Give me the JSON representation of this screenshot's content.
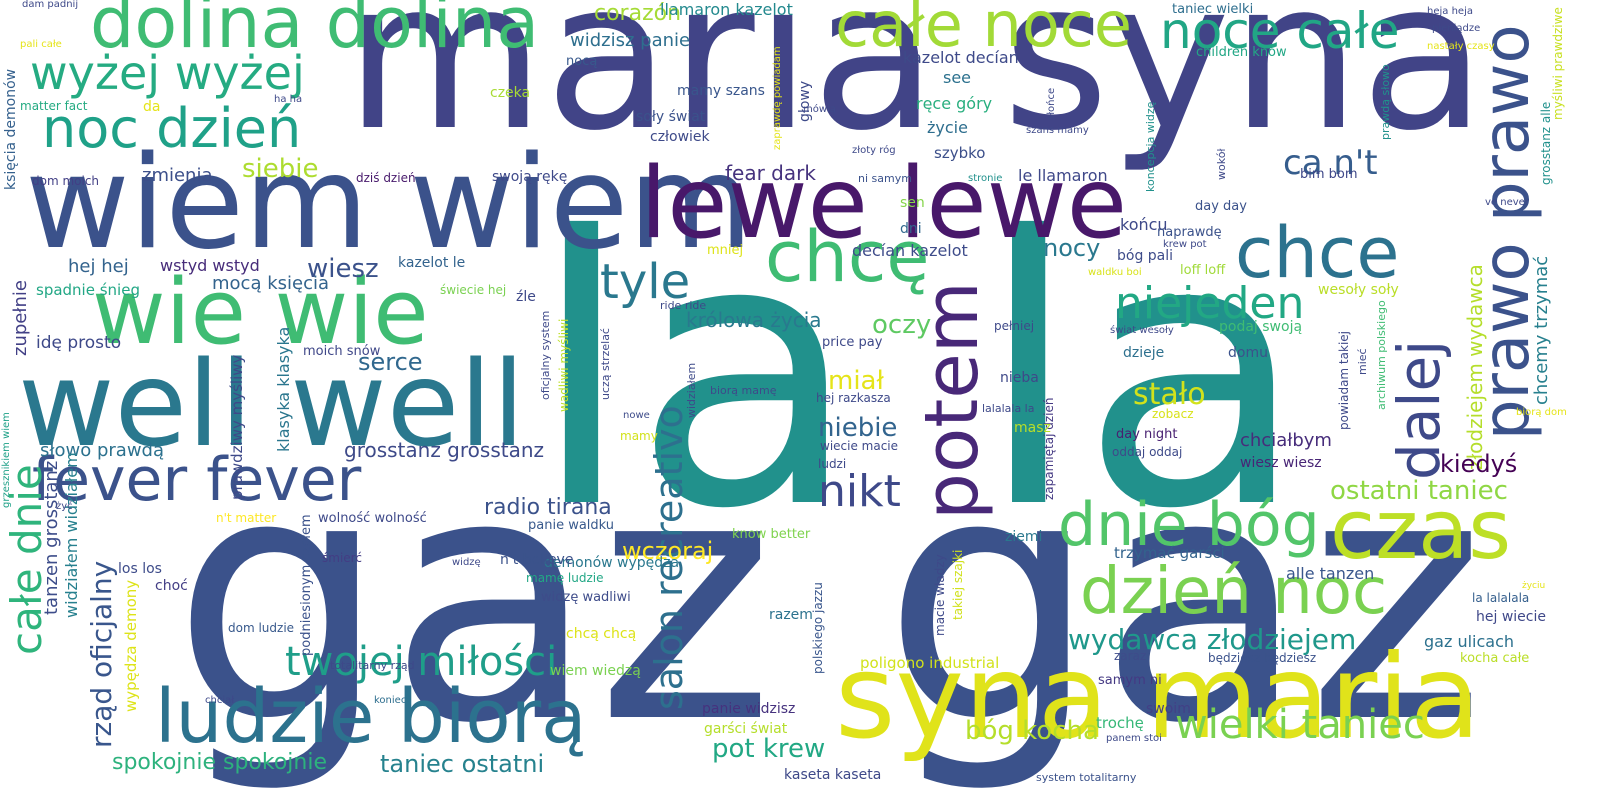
{
  "words": [
    {
      "text": "la la",
      "color": "#21918c"
    },
    {
      "text": "gaz gaz",
      "color": "#3b528b"
    },
    {
      "text": "maria syna",
      "color": "#414487"
    },
    {
      "text": "syna maria",
      "color": "#e0e31a"
    },
    {
      "text": "wiem wiem",
      "color": "#3b528b"
    },
    {
      "text": "well well",
      "color": "#2a788e"
    },
    {
      "text": "wie wie",
      "color": "#3fbc73"
    },
    {
      "text": "lewe lewe",
      "color": "#48186a"
    },
    {
      "text": "dolina dolina",
      "color": "#3fbc73"
    },
    {
      "text": "całe noce",
      "color": "#a2da37"
    },
    {
      "text": "noce całe",
      "color": "#21a685"
    },
    {
      "text": "czas",
      "color": "#bddf26"
    },
    {
      "text": "dzień noc",
      "color": "#7ad151"
    },
    {
      "text": "dnie bóg",
      "color": "#52c569"
    },
    {
      "text": "ludzie biorą",
      "color": "#2c728e"
    },
    {
      "text": "fever fever",
      "color": "#3b528b"
    },
    {
      "text": "chce",
      "color": "#2c728e"
    },
    {
      "text": "chcę",
      "color": "#3fbc73"
    },
    {
      "text": "noc dzień",
      "color": "#1fa188"
    },
    {
      "text": "wyżej wyżej",
      "color": "#25ab82"
    },
    {
      "text": "potem",
      "color": "#482878"
    },
    {
      "text": "prawo prawo",
      "color": "#3b528b"
    },
    {
      "text": "dalej",
      "color": "#3e4989"
    },
    {
      "text": "niejeden",
      "color": "#22a884"
    },
    {
      "text": "wielki taniec",
      "color": "#7ad151"
    },
    {
      "text": "twojej miłości",
      "color": "#1f9e89"
    },
    {
      "text": "nikt",
      "color": "#3e4989"
    },
    {
      "text": "tyle",
      "color": "#2a788e"
    },
    {
      "text": "całe dnie",
      "color": "#2fb47c"
    },
    {
      "text": "salon recreativo",
      "color": "#2d708e"
    },
    {
      "text": "ca n't",
      "color": "#365d8d"
    },
    {
      "text": "wydawca złodziejem",
      "color": "#1f988b"
    },
    {
      "text": "ostatni taniec",
      "color": "#8fd744"
    },
    {
      "text": "bóg kocha",
      "color": "#b5de2b"
    },
    {
      "text": "pot krew",
      "color": "#22a884"
    },
    {
      "text": "taniec ostatni",
      "color": "#26828e"
    },
    {
      "text": "rząd oficjalny",
      "color": "#39568c"
    },
    {
      "text": "spokojnie spokojnie",
      "color": "#2db27d"
    },
    {
      "text": "radio tirana",
      "color": "#3b528b"
    },
    {
      "text": "wczoraj",
      "color": "#fde725"
    },
    {
      "text": "złodziejem wydawca",
      "color": "#b5de2b"
    },
    {
      "text": "chcemy trzymać",
      "color": "#27808e"
    },
    {
      "text": "stało",
      "color": "#d2e21b"
    },
    {
      "text": "królowa życia",
      "color": "#29798e"
    },
    {
      "text": "oczy",
      "color": "#5ec962"
    },
    {
      "text": "miał",
      "color": "#e5e419"
    },
    {
      "text": "niebie",
      "color": "#32648e"
    },
    {
      "text": "siebie",
      "color": "#addc30"
    },
    {
      "text": "serce",
      "color": "#31688e"
    },
    {
      "text": "wiesz",
      "color": "#3b528b"
    },
    {
      "text": "nocy",
      "color": "#2a788e"
    },
    {
      "text": "kiedyś",
      "color": "#440154"
    },
    {
      "text": "grosstanz grosstanz",
      "color": "#3e4a89"
    },
    {
      "text": "fear dark",
      "color": "#46337e"
    },
    {
      "text": "widzisz panie",
      "color": "#2e6f8e"
    },
    {
      "text": "corazón",
      "color": "#a5db36"
    },
    {
      "text": "mocą księcia",
      "color": "#33638d"
    },
    {
      "text": "słowo prawdą",
      "color": "#2c718e"
    },
    {
      "text": "hej hej",
      "color": "#33638d"
    },
    {
      "text": "wstyd wstyd",
      "color": "#472c7a"
    },
    {
      "text": "spadnie śnieg",
      "color": "#22a785"
    },
    {
      "text": "idę prosto",
      "color": "#3e4989"
    },
    {
      "text": "zupełnie",
      "color": "#424086"
    },
    {
      "text": "zmienia",
      "color": "#3c4f8a"
    },
    {
      "text": "kazelot le",
      "color": "#33638d"
    },
    {
      "text": "tanzen grosstanz",
      "color": "#3d4d8a"
    },
    {
      "text": "widziałem widziałem",
      "color": "#27808e"
    },
    {
      "text": "wypędza demony",
      "color": "#dde318"
    },
    {
      "text": "prawdziwy myśliwy",
      "color": "#3e4989"
    },
    {
      "text": "klasyka klasyka",
      "color": "#2a768e"
    },
    {
      "text": "moich snów",
      "color": "#3f4788"
    },
    {
      "text": "decían kazelot",
      "color": "#3e4c8a"
    },
    {
      "text": "kazelot decían",
      "color": "#3e4a89"
    },
    {
      "text": "llamaron kazelot",
      "color": "#23898e"
    },
    {
      "text": "le llamaron",
      "color": "#3f4889"
    },
    {
      "text": "ręce góry",
      "color": "#29af7f"
    },
    {
      "text": "życie",
      "color": "#2e6e8e"
    },
    {
      "text": "szybko",
      "color": "#3c4f8a"
    },
    {
      "text": "see",
      "color": "#2c718e"
    },
    {
      "text": "soły świat",
      "color": "#3b528b"
    },
    {
      "text": "człowiek",
      "color": "#3e4a89"
    },
    {
      "text": "swoją rękę",
      "color": "#3e4989"
    },
    {
      "text": "końcu",
      "color": "#3e4989"
    },
    {
      "text": "dziś dzień",
      "color": "#481a6c"
    },
    {
      "text": "dom moich",
      "color": "#423f85"
    },
    {
      "text": "księcia demonów",
      "color": "#34608d"
    },
    {
      "text": "matter fact",
      "color": "#25ab82"
    },
    {
      "text": "mamy szans",
      "color": "#39568c"
    },
    {
      "text": "czeka",
      "color": "#a8db34"
    },
    {
      "text": "nocą",
      "color": "#38598c"
    },
    {
      "text": "głowy",
      "color": "#3e4a89"
    },
    {
      "text": "sen",
      "color": "#85d54a"
    },
    {
      "text": "dni",
      "color": "#31688e"
    },
    {
      "text": "mniej",
      "color": "#dde318"
    },
    {
      "text": "naprawdę",
      "color": "#3b528b"
    },
    {
      "text": "bim bom",
      "color": "#3f4889"
    },
    {
      "text": "day day",
      "color": "#3b528b"
    },
    {
      "text": "bóg pali",
      "color": "#3e4c8a"
    },
    {
      "text": "loff loff",
      "color": "#a0da39"
    },
    {
      "text": "taniec wielki",
      "color": "#2e6e8e"
    },
    {
      "text": "children know",
      "color": "#22a785"
    },
    {
      "text": "wesoły soły",
      "color": "#bade28"
    },
    {
      "text": "podaj swoją",
      "color": "#3fbc73"
    },
    {
      "text": "dzieje",
      "color": "#2d708e"
    },
    {
      "text": "domu",
      "color": "#3b528b"
    },
    {
      "text": "zobacz",
      "color": "#d8e219"
    },
    {
      "text": "day night",
      "color": "#482071"
    },
    {
      "text": "oddaj oddaj",
      "color": "#3e4a89"
    },
    {
      "text": "chciałbym",
      "color": "#472d7b"
    },
    {
      "text": "wiesz wiesz",
      "color": "#482576"
    },
    {
      "text": "alle tanzen",
      "color": "#39568c"
    },
    {
      "text": "gaz ulicach",
      "color": "#2c718e"
    },
    {
      "text": "hej wiecie",
      "color": "#3f4889"
    },
    {
      "text": "la lalalala",
      "color": "#355f8d"
    },
    {
      "text": "kocha całe",
      "color": "#bade28"
    },
    {
      "text": "będziesz będziesz",
      "color": "#3b528b"
    },
    {
      "text": "zaraz",
      "color": "#3e4c8a"
    },
    {
      "text": "samym ni",
      "color": "#443983"
    },
    {
      "text": "trochę",
      "color": "#37b878"
    },
    {
      "text": "swoim",
      "color": "#424086"
    },
    {
      "text": "trzymać garści",
      "color": "#33638d"
    },
    {
      "text": "panem stoi",
      "color": "#3e4a89"
    },
    {
      "text": "system totalitarny",
      "color": "#3b528b"
    },
    {
      "text": "kaseta kaseta",
      "color": "#3e4989"
    },
    {
      "text": "panie widzisz",
      "color": "#46327e"
    },
    {
      "text": "garści świat",
      "color": "#b5de2b"
    },
    {
      "text": "razem",
      "color": "#2c728e"
    },
    {
      "text": "poligono industrial",
      "color": "#d2e21b"
    },
    {
      "text": "polskiego jazzu",
      "color": "#39568c"
    },
    {
      "text": "macie władzy",
      "color": "#3e4989"
    },
    {
      "text": "takiej szajki",
      "color": "#d0e11c"
    },
    {
      "text": "ziemi",
      "color": "#2a788e"
    },
    {
      "text": "know better",
      "color": "#7fd34e"
    },
    {
      "text": "demonów wypędza",
      "color": "#2a788e"
    },
    {
      "text": "widzę wadliwi",
      "color": "#3e4c8a"
    },
    {
      "text": "panie waldku",
      "color": "#38598c"
    },
    {
      "text": "mamę ludzie",
      "color": "#22a785"
    },
    {
      "text": "chcą chcą",
      "color": "#dde318"
    },
    {
      "text": "wiem wiedzą",
      "color": "#7ad151"
    },
    {
      "text": "n't believe",
      "color": "#3b528b"
    },
    {
      "text": "wolność wolność",
      "color": "#3e4989"
    },
    {
      "text": "n't matter",
      "color": "#fde725"
    },
    {
      "text": "choć",
      "color": "#433e85"
    },
    {
      "text": "los los",
      "color": "#3e4c8a"
    },
    {
      "text": "dom ludzie",
      "color": "#38598c"
    },
    {
      "text": "śmierć",
      "color": "#433d84"
    },
    {
      "text": "podniesionym czołem",
      "color": "#3b528b"
    },
    {
      "text": "totalitarny rząd",
      "color": "#3e4989"
    },
    {
      "text": "koniec",
      "color": "#2e6e8e"
    },
    {
      "text": "chciał",
      "color": "#3e4989"
    },
    {
      "text": "widzę",
      "color": "#3e4989"
    },
    {
      "text": "mamy",
      "color": "#d2e21b"
    },
    {
      "text": "nowe",
      "color": "#3e4c8a"
    },
    {
      "text": "biorą mamę",
      "color": "#3e4a89"
    },
    {
      "text": "widziałem",
      "color": "#3e4a89"
    },
    {
      "text": "uczą strzelać",
      "color": "#3e4989"
    },
    {
      "text": "wadliwi myśliwi",
      "color": "#bddf26"
    },
    {
      "text": "oficjalny system",
      "color": "#3e4989"
    },
    {
      "text": "ride ride",
      "color": "#3e4989"
    },
    {
      "text": "mówią",
      "color": "#3e4989"
    },
    {
      "text": "zaprawdę powiadam",
      "color": "#e5e419"
    },
    {
      "text": "złoty róg",
      "color": "#3e4989"
    },
    {
      "text": "ni samym",
      "color": "#3b528b"
    },
    {
      "text": "słońce",
      "color": "#3e4989"
    },
    {
      "text": "szans mamy",
      "color": "#3e4989"
    },
    {
      "text": "stronie",
      "color": "#21918c"
    },
    {
      "text": "koncepcja widzę",
      "color": "#21918c"
    },
    {
      "text": "wokół",
      "color": "#3e4989"
    },
    {
      "text": "krew pot",
      "color": "#3e4989"
    },
    {
      "text": "waldku boi",
      "color": "#d8e219"
    },
    {
      "text": "świat wesoły",
      "color": "#3e4989"
    },
    {
      "text": "pełniej",
      "color": "#3e4989"
    },
    {
      "text": "zapamiętaj dzień",
      "color": "#443983"
    },
    {
      "text": "nieba",
      "color": "#3e4989"
    },
    {
      "text": "masz",
      "color": "#b8de29"
    },
    {
      "text": "lalalala la",
      "color": "#3e4989"
    },
    {
      "text": "hej razkasza",
      "color": "#3e4989"
    },
    {
      "text": "wiecie macie",
      "color": "#3e4989"
    },
    {
      "text": "ludzi",
      "color": "#3e4989"
    },
    {
      "text": "price pay",
      "color": "#3e4989"
    },
    {
      "text": "powiadam takiej",
      "color": "#3e4989"
    },
    {
      "text": "mieć",
      "color": "#3e4989"
    },
    {
      "text": "archiwum polskiego",
      "color": "#3fbc73"
    },
    {
      "text": "grosstanz alle",
      "color": "#21918c"
    },
    {
      "text": "prawdą słowo",
      "color": "#21918c"
    },
    {
      "text": "myśliwi prawdziwe",
      "color": "#c8e020"
    },
    {
      "text": "pieniądze",
      "color": "#3e4989"
    },
    {
      "text": "heja heja",
      "color": "#3e4989"
    },
    {
      "text": "nastały czasy",
      "color": "#e5e419"
    },
    {
      "text": "ve never",
      "color": "#3e4989"
    },
    {
      "text": "biorą dom",
      "color": "#e5e419"
    },
    {
      "text": "życiu",
      "color": "#e5e419"
    },
    {
      "text": "dam padnij",
      "color": "#3e4989"
    },
    {
      "text": "pali całe",
      "color": "#e5e419"
    },
    {
      "text": "ha ha",
      "color": "#3e4989"
    },
    {
      "text": "da",
      "color": "#e5e419"
    },
    {
      "text": "grzesznikiem wiem",
      "color": "#1fa188"
    },
    {
      "text": "żyć",
      "color": "#3e4989"
    },
    {
      "text": "źle",
      "color": "#3e4989"
    },
    {
      "text": "świecie hej",
      "color": "#7ad151"
    }
  ]
}
